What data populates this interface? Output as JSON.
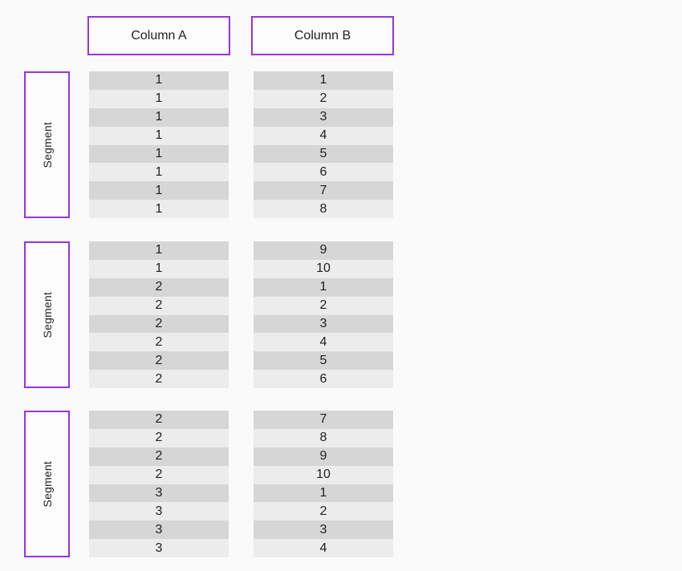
{
  "colors": {
    "background": "#fafafa",
    "accent_purple": "#9933dd",
    "row_dark": "#d6d6d6",
    "row_light": "#ececec",
    "text": "#1f1f1f",
    "box_fill": "#fcfcfc"
  },
  "columns": [
    {
      "label": "Column A"
    },
    {
      "label": "Column B"
    }
  ],
  "segments": [
    {
      "label": "Segment",
      "column_a": [
        "1",
        "1",
        "1",
        "1",
        "1",
        "1",
        "1",
        "1"
      ],
      "column_b": [
        "1",
        "2",
        "3",
        "4",
        "5",
        "6",
        "7",
        "8"
      ]
    },
    {
      "label": "Segment",
      "column_a": [
        "1",
        "1",
        "2",
        "2",
        "2",
        "2",
        "2",
        "2"
      ],
      "column_b": [
        "9",
        "10",
        "1",
        "2",
        "3",
        "4",
        "5",
        "6"
      ]
    },
    {
      "label": "Segment",
      "column_a": [
        "2",
        "2",
        "2",
        "2",
        "3",
        "3",
        "3",
        "3"
      ],
      "column_b": [
        "7",
        "8",
        "9",
        "10",
        "1",
        "2",
        "3",
        "4"
      ]
    }
  ]
}
